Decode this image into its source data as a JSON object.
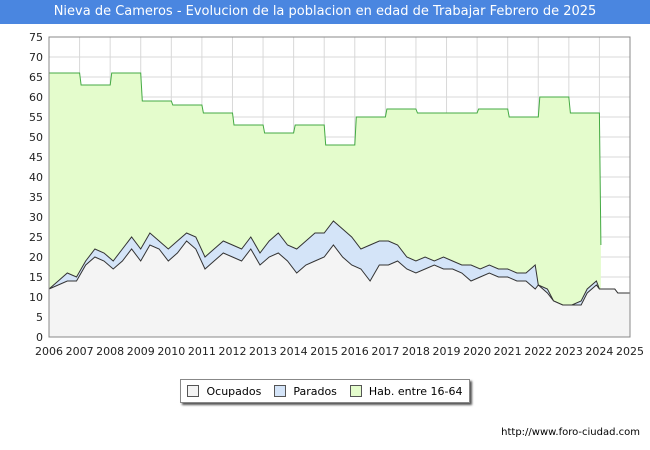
{
  "header": {
    "title": "Nieva de Cameros - Evolucion de la poblacion en edad de Trabajar Febrero de 2025"
  },
  "footer": {
    "source": "http://www.foro-ciudad.com"
  },
  "chart_data": {
    "type": "area",
    "title": "Nieva de Cameros - Evolucion de la poblacion en edad de Trabajar Febrero de 2025",
    "xlabel": "",
    "ylabel": "",
    "xlim": [
      2006,
      2025
    ],
    "ylim": [
      0,
      75
    ],
    "y_ticks": [
      0,
      5,
      10,
      15,
      20,
      25,
      30,
      35,
      40,
      45,
      50,
      55,
      60,
      65,
      70,
      75
    ],
    "x_ticks": [
      2006,
      2007,
      2008,
      2009,
      2010,
      2011,
      2012,
      2013,
      2014,
      2015,
      2016,
      2017,
      2018,
      2019,
      2020,
      2021,
      2022,
      2023,
      2024,
      2025
    ],
    "grid": true,
    "legend_position": "bottom",
    "colors": {
      "ocupados": "#f4f4f4",
      "parados": "#d4e4f8",
      "hab": "#e4fccc",
      "line": "#333333",
      "hab_line": "#44aa44",
      "title_bg": "#4a86e0"
    },
    "series": [
      {
        "name": "Hab. entre 16-64",
        "points": [
          [
            2006.0,
            66
          ],
          [
            2007.0,
            66
          ],
          [
            2007.05,
            63
          ],
          [
            2008.0,
            63
          ],
          [
            2008.05,
            66
          ],
          [
            2009.0,
            66
          ],
          [
            2009.05,
            59
          ],
          [
            2010.0,
            59
          ],
          [
            2010.05,
            58
          ],
          [
            2011.0,
            58
          ],
          [
            2011.05,
            56
          ],
          [
            2012.0,
            56
          ],
          [
            2012.05,
            53
          ],
          [
            2013.0,
            53
          ],
          [
            2013.05,
            51
          ],
          [
            2014.0,
            51
          ],
          [
            2014.05,
            53
          ],
          [
            2015.0,
            53
          ],
          [
            2015.05,
            48
          ],
          [
            2016.0,
            48
          ],
          [
            2016.05,
            55
          ],
          [
            2017.0,
            55
          ],
          [
            2017.05,
            57
          ],
          [
            2018.0,
            57
          ],
          [
            2018.05,
            56
          ],
          [
            2019.0,
            56
          ],
          [
            2019.05,
            56
          ],
          [
            2020.0,
            56
          ],
          [
            2020.05,
            57
          ],
          [
            2021.0,
            57
          ],
          [
            2021.05,
            55
          ],
          [
            2022.0,
            55
          ],
          [
            2022.05,
            60
          ],
          [
            2023.0,
            60
          ],
          [
            2023.05,
            56
          ],
          [
            2024.0,
            56
          ],
          [
            2024.05,
            23
          ]
        ]
      },
      {
        "name": "Parados",
        "points": [
          [
            2006.0,
            12
          ],
          [
            2006.3,
            14
          ],
          [
            2006.6,
            16
          ],
          [
            2006.9,
            15
          ],
          [
            2007.2,
            19
          ],
          [
            2007.5,
            22
          ],
          [
            2007.8,
            21
          ],
          [
            2008.1,
            19
          ],
          [
            2008.4,
            22
          ],
          [
            2008.7,
            25
          ],
          [
            2009.0,
            22
          ],
          [
            2009.3,
            26
          ],
          [
            2009.6,
            24
          ],
          [
            2009.9,
            22
          ],
          [
            2010.2,
            24
          ],
          [
            2010.5,
            26
          ],
          [
            2010.8,
            25
          ],
          [
            2011.1,
            20
          ],
          [
            2011.4,
            22
          ],
          [
            2011.7,
            24
          ],
          [
            2012.0,
            23
          ],
          [
            2012.3,
            22
          ],
          [
            2012.6,
            25
          ],
          [
            2012.9,
            21
          ],
          [
            2013.2,
            24
          ],
          [
            2013.5,
            26
          ],
          [
            2013.8,
            23
          ],
          [
            2014.1,
            22
          ],
          [
            2014.4,
            24
          ],
          [
            2014.7,
            26
          ],
          [
            2015.0,
            26
          ],
          [
            2015.3,
            29
          ],
          [
            2015.6,
            27
          ],
          [
            2015.9,
            25
          ],
          [
            2016.2,
            22
          ],
          [
            2016.5,
            23
          ],
          [
            2016.8,
            24
          ],
          [
            2017.1,
            24
          ],
          [
            2017.4,
            23
          ],
          [
            2017.7,
            20
          ],
          [
            2018.0,
            19
          ],
          [
            2018.3,
            20
          ],
          [
            2018.6,
            19
          ],
          [
            2018.9,
            20
          ],
          [
            2019.2,
            19
          ],
          [
            2019.5,
            18
          ],
          [
            2019.8,
            18
          ],
          [
            2020.1,
            17
          ],
          [
            2020.4,
            18
          ],
          [
            2020.7,
            17
          ],
          [
            2021.0,
            17
          ],
          [
            2021.3,
            16
          ],
          [
            2021.6,
            16
          ],
          [
            2021.9,
            18
          ],
          [
            2022.0,
            13
          ],
          [
            2022.3,
            12
          ],
          [
            2022.5,
            9
          ],
          [
            2022.8,
            8
          ],
          [
            2023.1,
            8
          ],
          [
            2023.4,
            9
          ],
          [
            2023.6,
            12
          ],
          [
            2023.9,
            14
          ],
          [
            2024.0,
            12
          ],
          [
            2024.5,
            12
          ],
          [
            2024.6,
            11
          ],
          [
            2025.0,
            11
          ]
        ]
      },
      {
        "name": "Ocupados",
        "points": [
          [
            2006.0,
            12
          ],
          [
            2006.3,
            13
          ],
          [
            2006.6,
            14
          ],
          [
            2006.9,
            14
          ],
          [
            2007.2,
            18
          ],
          [
            2007.5,
            20
          ],
          [
            2007.8,
            19
          ],
          [
            2008.1,
            17
          ],
          [
            2008.4,
            19
          ],
          [
            2008.7,
            22
          ],
          [
            2009.0,
            19
          ],
          [
            2009.3,
            23
          ],
          [
            2009.6,
            22
          ],
          [
            2009.9,
            19
          ],
          [
            2010.2,
            21
          ],
          [
            2010.5,
            24
          ],
          [
            2010.8,
            22
          ],
          [
            2011.1,
            17
          ],
          [
            2011.4,
            19
          ],
          [
            2011.7,
            21
          ],
          [
            2012.0,
            20
          ],
          [
            2012.3,
            19
          ],
          [
            2012.6,
            22
          ],
          [
            2012.9,
            18
          ],
          [
            2013.2,
            20
          ],
          [
            2013.5,
            21
          ],
          [
            2013.8,
            19
          ],
          [
            2014.1,
            16
          ],
          [
            2014.4,
            18
          ],
          [
            2014.7,
            19
          ],
          [
            2015.0,
            20
          ],
          [
            2015.3,
            23
          ],
          [
            2015.6,
            20
          ],
          [
            2015.9,
            18
          ],
          [
            2016.2,
            17
          ],
          [
            2016.5,
            14
          ],
          [
            2016.8,
            18
          ],
          [
            2017.1,
            18
          ],
          [
            2017.4,
            19
          ],
          [
            2017.7,
            17
          ],
          [
            2018.0,
            16
          ],
          [
            2018.3,
            17
          ],
          [
            2018.6,
            18
          ],
          [
            2018.9,
            17
          ],
          [
            2019.2,
            17
          ],
          [
            2019.5,
            16
          ],
          [
            2019.8,
            14
          ],
          [
            2020.1,
            15
          ],
          [
            2020.4,
            16
          ],
          [
            2020.7,
            15
          ],
          [
            2021.0,
            15
          ],
          [
            2021.3,
            14
          ],
          [
            2021.6,
            14
          ],
          [
            2021.9,
            12
          ],
          [
            2022.0,
            13
          ],
          [
            2022.3,
            11
          ],
          [
            2022.5,
            9
          ],
          [
            2022.8,
            8
          ],
          [
            2023.1,
            8
          ],
          [
            2023.4,
            8
          ],
          [
            2023.6,
            11
          ],
          [
            2023.9,
            13
          ],
          [
            2024.0,
            12
          ],
          [
            2024.5,
            12
          ],
          [
            2024.6,
            11
          ],
          [
            2025.0,
            11
          ]
        ]
      }
    ],
    "legend": [
      {
        "label": "Ocupados",
        "color": "#f4f4f4"
      },
      {
        "label": "Parados",
        "color": "#d4e4f8"
      },
      {
        "label": "Hab. entre 16-64",
        "color": "#e4fccc"
      }
    ]
  }
}
